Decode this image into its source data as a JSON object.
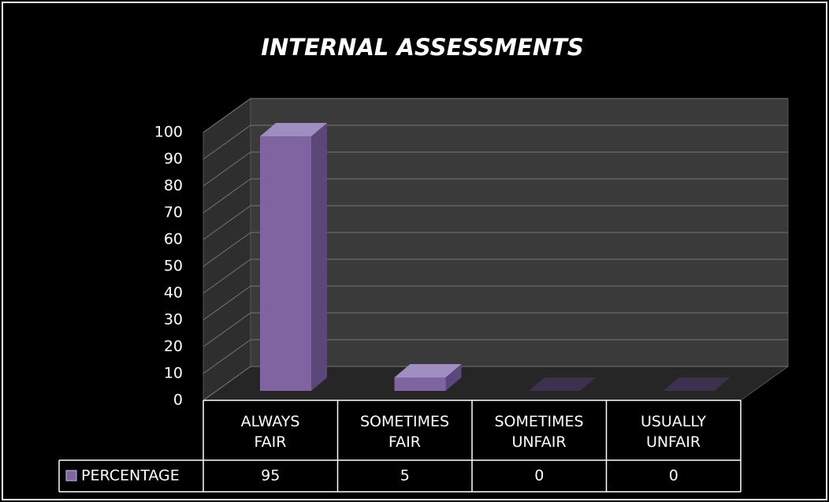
{
  "chart_data": {
    "type": "bar3d",
    "title": "INTERNAL ASSESSMENTS",
    "categories": [
      "ALWAYS FAIR",
      "SOMETIMES FAIR",
      "SOMETIMES UNFAIR",
      "USUALLY UNFAIR"
    ],
    "series": [
      {
        "name": "PERCENTAGE",
        "color": "#8064a2",
        "values": [
          95,
          5,
          0,
          0
        ]
      }
    ],
    "ylim": [
      0,
      100
    ],
    "yticks": [
      0,
      10,
      20,
      30,
      40,
      50,
      60,
      70,
      80,
      90,
      100
    ],
    "grid": true,
    "data_table": true
  }
}
